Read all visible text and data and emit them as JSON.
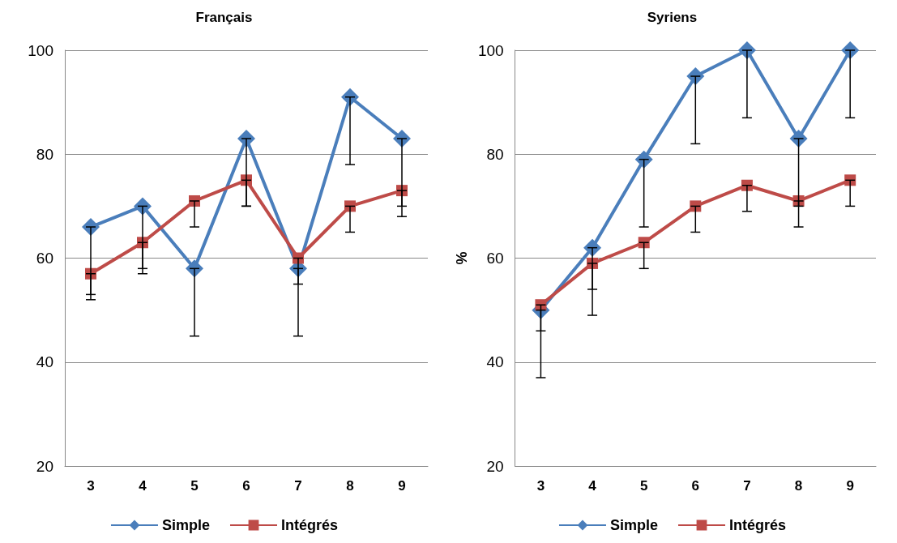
{
  "chart_data": [
    {
      "type": "line",
      "title": "Français",
      "categories": [
        "3",
        "4",
        "5",
        "6",
        "7",
        "8",
        "9"
      ],
      "ylim": [
        20,
        100
      ],
      "yticks": [
        20,
        40,
        60,
        80,
        100
      ],
      "grid": "y",
      "legend": "bottom",
      "line_style": "solid",
      "series": [
        {
          "name": "Simple",
          "color": "#4a7ebb",
          "marker": "diamond",
          "values": [
            66,
            70,
            58,
            83,
            58,
            91,
            83
          ],
          "errors": [
            [
              53,
              66
            ],
            [
              57,
              70
            ],
            [
              45,
              58
            ],
            [
              70,
              83
            ],
            [
              45,
              58
            ],
            [
              78,
              91
            ],
            [
              70,
              83
            ]
          ]
        },
        {
          "name": "Intégrés",
          "color": "#be4b48",
          "marker": "square",
          "values": [
            57,
            63,
            71,
            75,
            60,
            70,
            73
          ],
          "errors": [
            [
              52,
              57
            ],
            [
              58,
              63
            ],
            [
              66,
              71
            ],
            [
              70,
              75
            ],
            [
              55,
              60
            ],
            [
              65,
              70
            ],
            [
              68,
              73
            ]
          ]
        }
      ]
    },
    {
      "type": "line",
      "title": "Syriens",
      "ylabel": "%",
      "categories": [
        "3",
        "4",
        "5",
        "6",
        "7",
        "8",
        "9"
      ],
      "ylim": [
        20,
        100
      ],
      "yticks": [
        20,
        40,
        60,
        80,
        100
      ],
      "grid": "y",
      "legend": "bottom",
      "line_style": "solid",
      "series": [
        {
          "name": "Simple",
          "color": "#4a7ebb",
          "marker": "diamond",
          "values": [
            50,
            62,
            79,
            95,
            100,
            83,
            100
          ],
          "errors": [
            [
              37,
              50
            ],
            [
              49,
              62
            ],
            [
              66,
              79
            ],
            [
              82,
              95
            ],
            [
              87,
              100
            ],
            [
              70,
              83
            ],
            [
              87,
              100
            ]
          ]
        },
        {
          "name": "Intégrés",
          "color": "#be4b48",
          "marker": "square",
          "values": [
            51,
            59,
            63,
            70,
            74,
            71,
            75
          ],
          "errors": [
            [
              46,
              51
            ],
            [
              54,
              59
            ],
            [
              58,
              63
            ],
            [
              65,
              70
            ],
            [
              69,
              74
            ],
            [
              66,
              71
            ],
            [
              70,
              75
            ]
          ]
        }
      ]
    }
  ]
}
